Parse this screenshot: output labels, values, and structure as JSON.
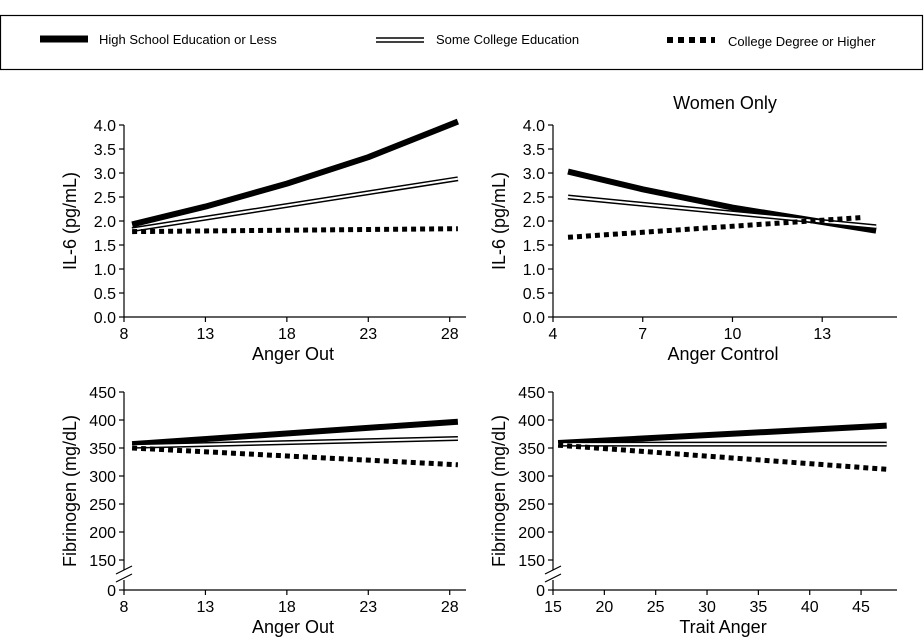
{
  "legend": {
    "items": [
      {
        "label": "High School Education or Less",
        "style": "thick"
      },
      {
        "label": "Some College Education",
        "style": "double"
      },
      {
        "label": "College Degree or Higher",
        "style": "dotted"
      }
    ]
  },
  "chart_data": [
    {
      "type": "line",
      "title": "",
      "xlabel": "Anger Out",
      "ylabel": "IL-6 (pg/mL)",
      "xlim": [
        8,
        29
      ],
      "ylim": [
        0,
        4
      ],
      "xticks": [
        8,
        13,
        18,
        23,
        28
      ],
      "yticks": [
        0.0,
        0.5,
        1.0,
        1.5,
        2.0,
        2.5,
        3.0,
        3.5,
        4.0
      ],
      "ytick_labels": [
        "0.0",
        "0.5",
        "1.0",
        "1.5",
        "2.0",
        "2.5",
        "3.0",
        "3.5",
        "4.0"
      ],
      "axis_break": false,
      "series": [
        {
          "name": "High School Education or Less",
          "style": "thick",
          "x": [
            8.5,
            13,
            18,
            23,
            28.5
          ],
          "y": [
            1.93,
            2.3,
            2.78,
            3.33,
            4.07
          ]
        },
        {
          "name": "Some College Education",
          "style": "double",
          "x": [
            8.5,
            28.5
          ],
          "y": [
            1.82,
            2.88
          ]
        },
        {
          "name": "College Degree or Higher",
          "style": "dotted",
          "x": [
            8.5,
            28.5
          ],
          "y": [
            1.78,
            1.84
          ]
        }
      ]
    },
    {
      "type": "line",
      "title": "Women Only",
      "xlabel": "Anger Control",
      "ylabel": "IL-6 (pg/mL)",
      "xlim": [
        4,
        15.5
      ],
      "ylim": [
        0,
        4
      ],
      "xticks": [
        4,
        7,
        10,
        13
      ],
      "yticks": [
        0.0,
        0.5,
        1.0,
        1.5,
        2.0,
        2.5,
        3.0,
        3.5,
        4.0
      ],
      "ytick_labels": [
        "0.0",
        "0.5",
        "1.0",
        "1.5",
        "2.0",
        "2.5",
        "3.0",
        "3.5",
        "4.0"
      ],
      "axis_break": false,
      "series": [
        {
          "name": "High School Education or Less",
          "style": "thick",
          "x": [
            4.5,
            7,
            10,
            13,
            14.8
          ],
          "y": [
            3.03,
            2.66,
            2.28,
            1.98,
            1.8
          ]
        },
        {
          "name": "Some College Education",
          "style": "double",
          "x": [
            4.5,
            14.8
          ],
          "y": [
            2.5,
            1.88
          ]
        },
        {
          "name": "College Degree or Higher",
          "style": "dotted",
          "x": [
            4.5,
            14.3
          ],
          "y": [
            1.66,
            2.07
          ]
        }
      ]
    },
    {
      "type": "line",
      "title": "",
      "xlabel": "Anger Out",
      "ylabel": "Fibrinogen (mg/dL)",
      "xlim": [
        8,
        29
      ],
      "ylim": [
        150,
        450
      ],
      "xticks": [
        8,
        13,
        18,
        23,
        28
      ],
      "yticks": [
        150,
        200,
        250,
        300,
        350,
        400,
        450
      ],
      "ytick_labels": [
        "150",
        "200",
        "250",
        "300",
        "350",
        "400",
        "450"
      ],
      "axis_break": true,
      "axis_break_label": "0",
      "series": [
        {
          "name": "High School Education or Less",
          "style": "thick",
          "x": [
            8.5,
            28.5
          ],
          "y": [
            357,
            397
          ]
        },
        {
          "name": "Some College Education",
          "style": "double",
          "x": [
            8.5,
            28.5
          ],
          "y": [
            353,
            367
          ]
        },
        {
          "name": "College Degree or Higher",
          "style": "dotted",
          "x": [
            8.5,
            28.5
          ],
          "y": [
            350,
            320
          ]
        }
      ]
    },
    {
      "type": "line",
      "title": "",
      "xlabel": "Trait Anger",
      "ylabel": "Fibrinogen (mg/dL)",
      "xlim": [
        15,
        48.5
      ],
      "ylim": [
        150,
        450
      ],
      "xticks": [
        15,
        20,
        25,
        30,
        35,
        40,
        45
      ],
      "yticks": [
        150,
        200,
        250,
        300,
        350,
        400,
        450
      ],
      "ytick_labels": [
        "150",
        "200",
        "250",
        "300",
        "350",
        "400",
        "450"
      ],
      "axis_break": true,
      "axis_break_label": "0",
      "series": [
        {
          "name": "High School Education or Less",
          "style": "thick",
          "x": [
            15.5,
            47.5
          ],
          "y": [
            359,
            390
          ]
        },
        {
          "name": "Some College Education",
          "style": "double",
          "x": [
            15.5,
            47.5
          ],
          "y": [
            357,
            357
          ]
        },
        {
          "name": "College Degree or Higher",
          "style": "dotted",
          "x": [
            15.5,
            47.5
          ],
          "y": [
            355,
            312
          ]
        }
      ]
    }
  ]
}
